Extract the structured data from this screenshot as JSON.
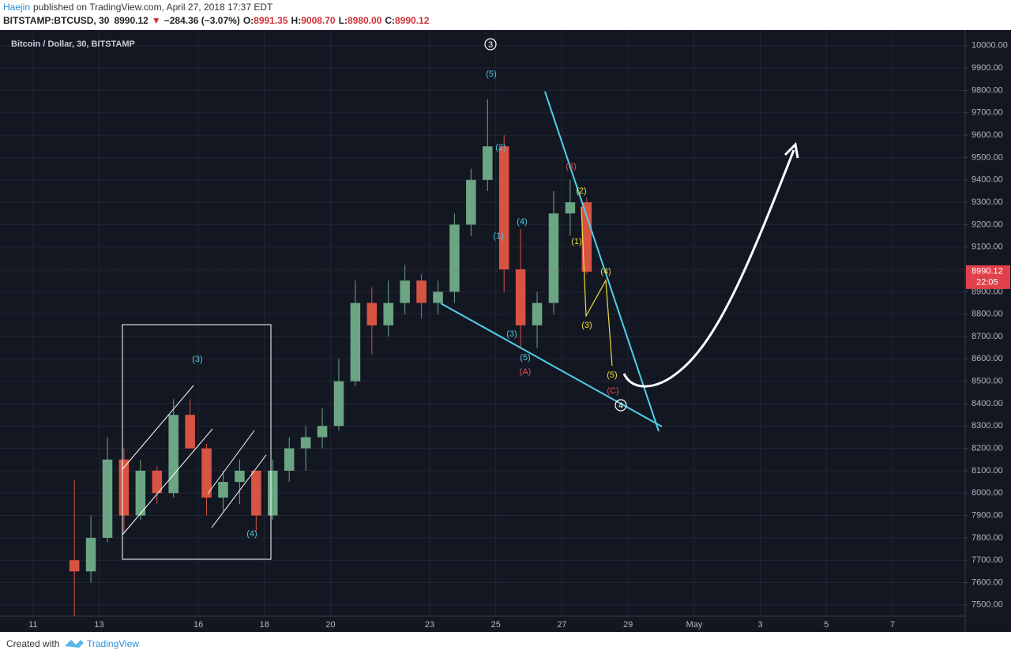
{
  "header": {
    "author": "Haejin",
    "published": "published on TradingView.com, April 27, 2018 17:37 EDT",
    "symbol": "BITSTAMP:BTCUSD, 30",
    "last": "8990.12",
    "arrow": "▼",
    "change": "−284.36 (−3.07%)",
    "o_label": "O:",
    "o": "8991.35",
    "h_label": "H:",
    "h": "9008.70",
    "l_label": "L:",
    "l": "8980.00",
    "c_label": "C:",
    "c": "8990.12"
  },
  "footer": {
    "created": "Created with",
    "brand": "TradingView"
  },
  "chart_data": {
    "type": "candlestick",
    "title": "Bitcoin / Dollar, 30, BITSTAMP",
    "x": [
      12.25,
      12.75,
      13.25,
      13.75,
      14.25,
      14.75,
      15.25,
      15.75,
      16.25,
      16.75,
      17.25,
      17.75,
      18.25,
      18.75,
      19.25,
      19.75,
      20.25,
      20.75,
      21.25,
      21.75,
      22.25,
      22.75,
      23.25,
      23.75,
      24.25,
      24.75,
      25.25,
      25.75,
      26.25,
      26.75,
      27.25,
      27.75
    ],
    "open": [
      7700,
      7650,
      7800,
      8150,
      7900,
      8100,
      8000,
      8350,
      8200,
      7980,
      8050,
      8100,
      7900,
      8100,
      8200,
      8250,
      8300,
      8500,
      8850,
      8750,
      8850,
      8950,
      8850,
      8900,
      9200,
      9400,
      9550,
      9000,
      8750,
      8850,
      9250,
      9300
    ],
    "high": [
      8060,
      7900,
      8250,
      8200,
      8150,
      8120,
      8420,
      8420,
      8220,
      8100,
      8150,
      8100,
      8150,
      8250,
      8300,
      8380,
      8600,
      8950,
      8920,
      8950,
      9020,
      8980,
      8950,
      9250,
      9450,
      9760,
      9600,
      9180,
      8900,
      9350,
      9400,
      9320
    ],
    "low": [
      7450,
      7600,
      7780,
      7820,
      7880,
      7950,
      7980,
      8200,
      7900,
      7920,
      7950,
      7830,
      7880,
      8050,
      8100,
      8200,
      8280,
      8480,
      8620,
      8700,
      8800,
      8780,
      8800,
      8850,
      9150,
      9350,
      8900,
      8650,
      8650,
      8800,
      9150,
      8980
    ],
    "close": [
      7650,
      7800,
      8150,
      7900,
      8100,
      8000,
      8350,
      8200,
      7980,
      8050,
      8100,
      7900,
      8100,
      8200,
      8250,
      8300,
      8500,
      8850,
      8750,
      8850,
      8950,
      8850,
      8900,
      9200,
      9400,
      9550,
      9000,
      8750,
      8850,
      9250,
      9300,
      8990
    ],
    "up_color": "#6ba583",
    "down_color": "#d75442",
    "xlim": [
      10,
      39.2
    ],
    "xticks": [
      11,
      13,
      16,
      18,
      20,
      23,
      25,
      27,
      29,
      {
        "value": 31,
        "label": "May"
      },
      {
        "value": 33,
        "label": "3"
      },
      {
        "value": 35,
        "label": "5"
      },
      {
        "value": 37,
        "label": "7"
      }
    ],
    "ylim": [
      7450,
      10070
    ],
    "yticks": [
      {
        "value": 7500,
        "label": "7500.00"
      },
      {
        "value": 7600,
        "label": "7600.00"
      },
      {
        "value": 7700,
        "label": "7700.00"
      },
      {
        "value": 7800,
        "label": "7800.00"
      },
      {
        "value": 7900,
        "label": "7900.00"
      },
      {
        "value": 8000,
        "label": "8000.00"
      },
      {
        "value": 8100,
        "label": "8100.00"
      },
      {
        "value": 8200,
        "label": "8200.00"
      },
      {
        "value": 8300,
        "label": "8300.00"
      },
      {
        "value": 8400,
        "label": "8400.00"
      },
      {
        "value": 8500,
        "label": "8500.00"
      },
      {
        "value": 8600,
        "label": "8600.00"
      },
      {
        "value": 8700,
        "label": "8700.00"
      },
      {
        "value": 8800,
        "label": "8800.00"
      },
      {
        "value": 8900,
        "label": "8900.00"
      },
      {
        "value": 9000,
        "label": "9000.00"
      },
      {
        "value": 9100,
        "label": "9100.00"
      },
      {
        "value": 9200,
        "label": "9200.00"
      },
      {
        "value": 9300,
        "label": "9300.00"
      },
      {
        "value": 9400,
        "label": "9400.00"
      },
      {
        "value": 9500,
        "label": "9500.00"
      },
      {
        "value": 9600,
        "label": "9600.00"
      },
      {
        "value": 9700,
        "label": "9700.00"
      },
      {
        "value": 9800,
        "label": "9800.00"
      },
      {
        "value": 9900,
        "label": "9900.00"
      },
      {
        "value": 10000,
        "label": "10000.00"
      }
    ],
    "grid": true,
    "last_price": {
      "value": 8990.12,
      "label": "8990.12",
      "countdown": "22:05",
      "color": "#e0404a"
    },
    "annotations": [
      {
        "text": "(5)",
        "color": "#4fc8dc"
      },
      {
        "text": "(2)",
        "color": "#4fc8dc"
      },
      {
        "text": "(1)",
        "color": "#4fc8dc"
      },
      {
        "text": "(4)",
        "color": "#4fc8dc"
      },
      {
        "text": "(3)",
        "color": "#4fc8dc"
      },
      {
        "text": "(5)",
        "color": "#4fc8dc"
      },
      {
        "text": "(A)",
        "color": "#e0505a"
      },
      {
        "text": "(3)",
        "color": "#e0505a"
      },
      {
        "text": "(2)",
        "color": "#f0dc40"
      },
      {
        "text": "(1)",
        "color": "#f0dc40"
      },
      {
        "text": "(4)",
        "color": "#f0dc40"
      },
      {
        "text": "(3)",
        "color": "#f0dc40"
      },
      {
        "text": "(5)",
        "color": "#f0dc40"
      },
      {
        "text": "(C)",
        "color": "#e0505a"
      },
      {
        "text": "3",
        "color": "#ffffff",
        "circled": true
      },
      {
        "text": "4",
        "color": "#ffffff",
        "circled": true
      },
      {
        "text": "(3)",
        "color": "#4fc8dc"
      },
      {
        "text": "(4)",
        "color": "#4fc8dc"
      }
    ]
  }
}
